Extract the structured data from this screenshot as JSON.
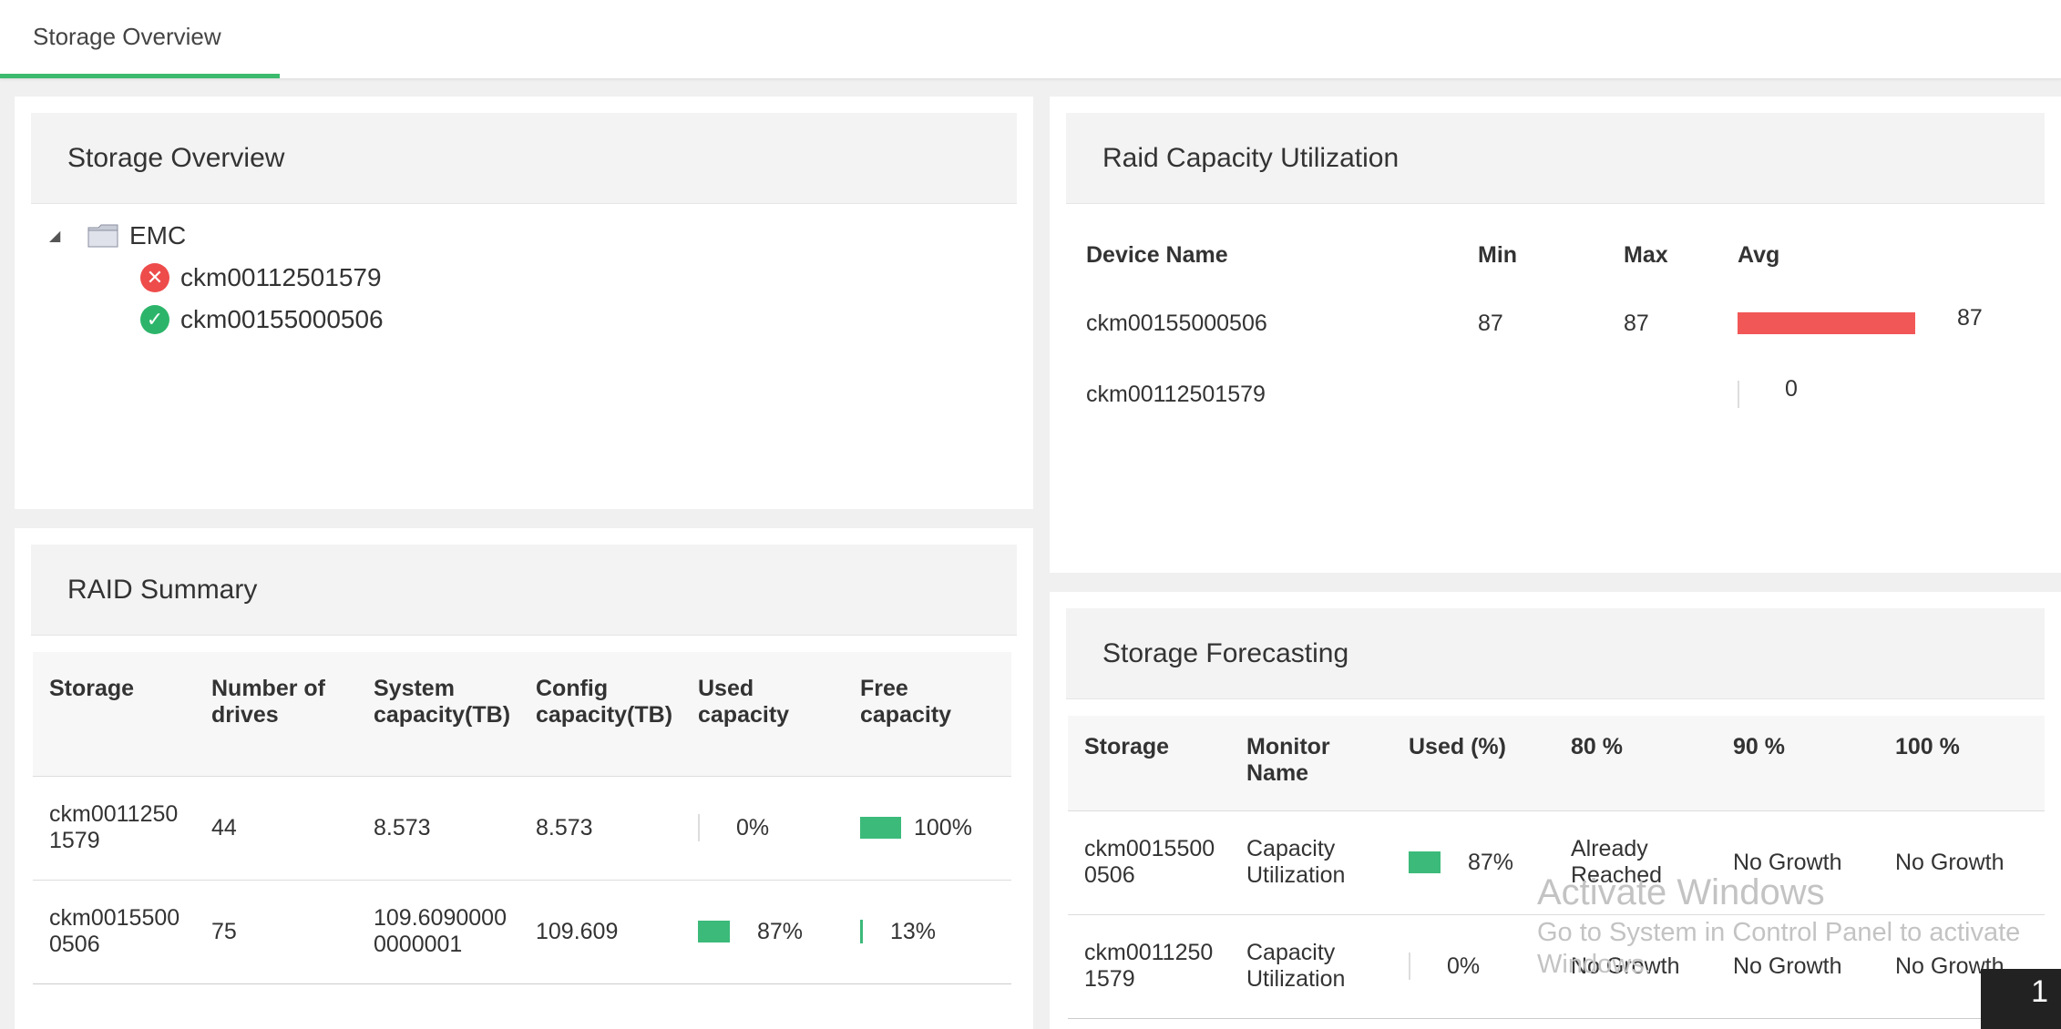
{
  "tab": {
    "label": "Storage Overview"
  },
  "storage_overview": {
    "title": "Storage Overview",
    "root": "EMC",
    "children": [
      {
        "name": "ckm00112501579",
        "status": "error"
      },
      {
        "name": "ckm00155000506",
        "status": "ok"
      }
    ]
  },
  "raid_capacity": {
    "title": "Raid Capacity Utilization",
    "columns": [
      "Device Name",
      "Min",
      "Max",
      "Avg"
    ],
    "rows": [
      {
        "device": "ckm00155000506",
        "min": "87",
        "max": "87",
        "avg": "87",
        "avg_value": 87
      },
      {
        "device": "ckm00112501579",
        "min": "",
        "max": "",
        "avg": "0",
        "avg_value": 0
      }
    ],
    "bar_color": "#f25757"
  },
  "raid_summary": {
    "title": "RAID Summary",
    "columns": [
      "Storage",
      "Number of drives",
      "System capacity(TB)",
      "Config capacity(TB)",
      "Used capacity",
      "Free capacity"
    ],
    "rows": [
      {
        "storage": "ckm00112501579",
        "drives": "44",
        "system": "8.573",
        "config": "8.573",
        "used": "0%",
        "used_value": 0,
        "free": "100%",
        "free_value": 100
      },
      {
        "storage": "ckm00155000506",
        "drives": "75",
        "system": "109.60900000000001",
        "config": "109.609",
        "used": "87%",
        "used_value": 87,
        "free": "13%",
        "free_value": 13
      }
    ],
    "bar_color": "#3cba7a"
  },
  "forecasting": {
    "title": "Storage Forecasting",
    "columns": [
      "Storage",
      "Monitor Name",
      "Used (%)",
      "80 %",
      "90 %",
      "100 %"
    ],
    "rows": [
      {
        "storage": "ckm00155000506",
        "monitor": "Capacity Utilization",
        "used": "87%",
        "used_value": 87,
        "p80": "Already Reached",
        "p90": "No Growth",
        "p100": "No Growth"
      },
      {
        "storage": "ckm00112501579",
        "monitor": "Capacity Utilization",
        "used": "0%",
        "used_value": 0,
        "p80": "No Growth",
        "p90": "No Growth",
        "p100": "No Growth"
      }
    ]
  },
  "overlay": {
    "watermark_title": "Activate Windows",
    "watermark_line1": "Go to System in Control Panel to activate",
    "watermark_line2": "Windows.",
    "badge": "1"
  }
}
